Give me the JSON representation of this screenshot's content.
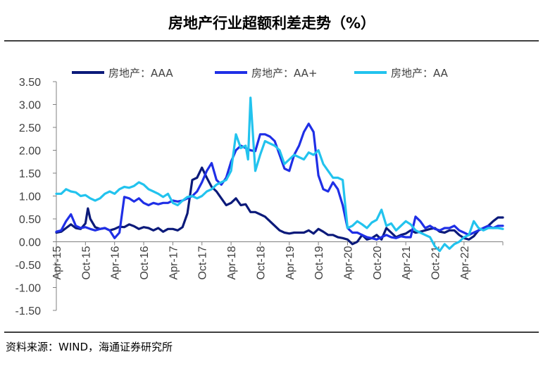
{
  "chart_data": {
    "type": "line",
    "title": "房地产行业超额利差走势（%）",
    "source": "资料来源：WIND，海通证券研究所",
    "xlabel": "",
    "ylabel": "",
    "ylim": [
      -1.5,
      3.5
    ],
    "yticks": [
      "3.50",
      "3.00",
      "2.50",
      "2.00",
      "1.50",
      "1.00",
      "0.50",
      "0.00",
      "-0.50",
      "-1.00",
      "-1.50"
    ],
    "ytick_values": [
      3.5,
      3.0,
      2.5,
      2.0,
      1.5,
      1.0,
      0.5,
      0.0,
      -0.5,
      -1.0,
      -1.5
    ],
    "xticks": [
      "Apr-15",
      "Oct-15",
      "Apr-16",
      "Oct-16",
      "Apr-17",
      "Oct-17",
      "Apr-18",
      "Oct-18",
      "Apr-19",
      "Oct-19",
      "Apr-20",
      "Oct-20",
      "Apr-21",
      "Oct-21",
      "Apr-22"
    ],
    "xtick_months": [
      0,
      6,
      12,
      18,
      24,
      30,
      36,
      42,
      48,
      54,
      60,
      66,
      72,
      78,
      84
    ],
    "x_unit": "months since Apr-15",
    "xlim": [
      0,
      92
    ],
    "legend_position": "top",
    "series": [
      {
        "name": "房地产：AAA",
        "color": "#0b1a7a",
        "x": [
          0,
          1,
          2,
          3,
          4,
          5,
          6,
          6.5,
          7,
          8,
          9,
          10,
          11,
          12,
          13,
          14,
          15,
          16,
          17,
          18,
          19,
          20,
          21,
          22,
          23,
          24,
          25,
          26,
          27,
          28,
          29,
          30,
          31,
          32,
          33,
          34,
          35,
          36,
          37,
          38,
          39,
          40,
          41,
          42,
          43,
          44,
          45,
          46,
          47,
          48,
          49,
          50,
          51,
          52,
          53,
          54,
          55,
          56,
          57,
          58,
          59,
          60,
          61,
          62,
          63,
          64,
          65,
          66,
          67,
          68,
          69,
          70,
          71,
          72,
          73,
          74,
          75,
          76,
          77,
          78,
          79,
          80,
          81,
          82,
          83,
          84,
          85,
          86,
          87,
          88,
          89,
          90,
          91,
          92
        ],
        "y": [
          0.2,
          0.22,
          0.3,
          0.38,
          0.3,
          0.28,
          0.4,
          0.73,
          0.5,
          0.32,
          0.28,
          0.3,
          0.25,
          0.28,
          0.33,
          0.32,
          0.38,
          0.34,
          0.28,
          0.32,
          0.3,
          0.25,
          0.3,
          0.22,
          0.28,
          0.28,
          0.25,
          0.32,
          0.62,
          1.35,
          1.4,
          1.62,
          1.4,
          1.2,
          1.1,
          0.95,
          0.8,
          0.85,
          0.95,
          0.8,
          0.82,
          0.65,
          0.65,
          0.6,
          0.55,
          0.45,
          0.35,
          0.25,
          0.2,
          0.18,
          0.2,
          0.2,
          0.2,
          0.25,
          0.18,
          0.28,
          0.22,
          0.15,
          0.15,
          0.1,
          0.08,
          0.05,
          -0.05,
          0.0,
          0.15,
          0.05,
          0.08,
          0.15,
          0.05,
          0.3,
          0.2,
          0.1,
          0.15,
          0.18,
          0.25,
          0.2,
          0.22,
          0.25,
          0.28,
          0.3,
          0.22,
          0.2,
          0.25,
          0.25,
          0.15,
          0.08,
          0.05,
          0.12,
          0.25,
          0.3,
          0.35,
          0.45,
          0.53,
          0.53
        ]
      },
      {
        "name": "房地产：AA+",
        "color": "#1f2fe6",
        "x": [
          0,
          1,
          2,
          3,
          4,
          5,
          6,
          7,
          8,
          9,
          10,
          11,
          12,
          13,
          14,
          15,
          16,
          17,
          18,
          19,
          20,
          21,
          22,
          23,
          24,
          25,
          26,
          27,
          28,
          29,
          30,
          31,
          32,
          33,
          34,
          35,
          36,
          37,
          38,
          39,
          40,
          41,
          42,
          43,
          44,
          45,
          46,
          47,
          48,
          49,
          50,
          51,
          52,
          53,
          54,
          55,
          56,
          57,
          58,
          59,
          60,
          61,
          62,
          63,
          64,
          65,
          66,
          67,
          68,
          69,
          70,
          71,
          72,
          73,
          74,
          75,
          76,
          77,
          78,
          79,
          80,
          81,
          82,
          83,
          84,
          85,
          86,
          87,
          88,
          89,
          90,
          91,
          92
        ],
        "y": [
          0.22,
          0.25,
          0.45,
          0.6,
          0.35,
          0.3,
          0.32,
          0.28,
          0.25,
          0.28,
          0.3,
          0.25,
          0.08,
          0.2,
          0.98,
          0.95,
          0.88,
          0.95,
          0.85,
          0.8,
          0.85,
          0.82,
          0.85,
          0.85,
          0.9,
          0.88,
          0.9,
          0.95,
          1.0,
          1.1,
          1.3,
          1.55,
          1.72,
          1.35,
          1.25,
          1.4,
          1.75,
          2.0,
          2.1,
          2.05,
          2.0,
          1.98,
          2.35,
          2.35,
          2.3,
          2.2,
          1.9,
          1.6,
          1.55,
          1.9,
          2.1,
          2.4,
          2.58,
          2.4,
          1.45,
          1.15,
          1.1,
          1.3,
          1.15,
          0.8,
          0.3,
          0.2,
          0.2,
          0.15,
          0.1,
          0.08,
          0.05,
          0.1,
          0.15,
          0.1,
          0.08,
          0.12,
          0.1,
          0.1,
          0.55,
          0.45,
          0.3,
          0.35,
          0.28,
          0.25,
          0.3,
          0.3,
          0.35,
          0.25,
          0.2,
          0.15,
          0.2,
          0.25,
          0.3,
          0.35,
          0.3,
          0.35,
          0.35
        ]
      },
      {
        "name": "房地产：AA",
        "color": "#22c3ee",
        "x": [
          0,
          1,
          2,
          3,
          4,
          5,
          6,
          7,
          8,
          9,
          10,
          11,
          12,
          13,
          14,
          15,
          16,
          17,
          18,
          19,
          20,
          21,
          22,
          23,
          24,
          25,
          26,
          27,
          28,
          29,
          30,
          31,
          32,
          33,
          34,
          35,
          36,
          37,
          38,
          39,
          39.5,
          40,
          41,
          42,
          43,
          44,
          45,
          46,
          47,
          48,
          49,
          50,
          51,
          52,
          53,
          54,
          55,
          56,
          57,
          58,
          59,
          60,
          61,
          62,
          63,
          64,
          65,
          66,
          67,
          68,
          69,
          70,
          71,
          72,
          73,
          74,
          75,
          76,
          77,
          78,
          79,
          80,
          81,
          82,
          83,
          84,
          85,
          86,
          87,
          88,
          89,
          90,
          91,
          92
        ],
        "y": [
          1.05,
          1.05,
          1.15,
          1.1,
          1.08,
          1.0,
          1.02,
          0.95,
          0.9,
          0.95,
          1.05,
          1.1,
          1.05,
          1.15,
          1.2,
          1.18,
          1.22,
          1.3,
          1.25,
          1.15,
          1.1,
          1.05,
          0.98,
          1.05,
          0.85,
          0.8,
          0.9,
          0.98,
          1.0,
          0.95,
          1.0,
          1.1,
          1.15,
          1.25,
          1.3,
          1.35,
          1.55,
          2.35,
          2.05,
          2.1,
          1.8,
          3.15,
          1.55,
          1.9,
          2.2,
          2.15,
          2.1,
          2.0,
          1.7,
          1.8,
          1.9,
          1.85,
          1.8,
          1.95,
          1.9,
          2.0,
          1.7,
          1.55,
          1.4,
          1.4,
          1.35,
          0.3,
          0.35,
          0.45,
          0.38,
          0.3,
          0.42,
          0.48,
          0.7,
          0.35,
          0.4,
          0.25,
          0.35,
          0.45,
          0.38,
          0.25,
          0.2,
          0.15,
          0.1,
          -0.1,
          -0.2,
          -0.05,
          -0.15,
          -0.05,
          0.0,
          0.1,
          0.15,
          0.45,
          0.3,
          0.25,
          0.3,
          0.3,
          0.3,
          0.28
        ]
      }
    ]
  }
}
